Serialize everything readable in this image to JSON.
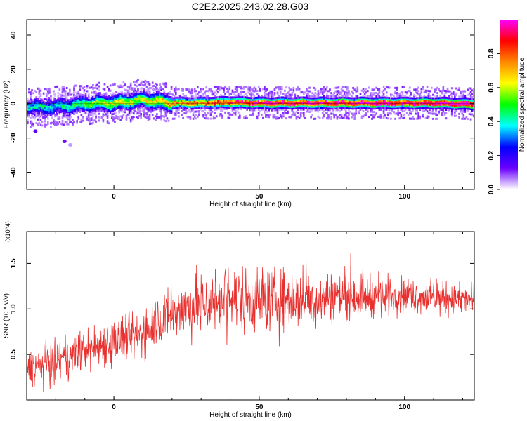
{
  "title": "C2E2.2025.243.02.28.G03",
  "chart_data": [
    {
      "type": "heatmap",
      "xlabel": "Height of straight line (km)",
      "ylabel": "Frequency (Hz)",
      "xlim": [
        -30,
        124
      ],
      "ylim": [
        -50,
        49
      ],
      "xticks": [
        "0",
        "50",
        "100"
      ],
      "xtick_values": [
        0,
        50,
        100
      ],
      "yticks": [
        "40",
        "20",
        "0",
        "-20",
        "-40"
      ],
      "ytick_values": [
        40,
        20,
        0,
        -20,
        -40
      ],
      "colorbar": {
        "label": "Normalized spectral amplitude",
        "ticks": [
          "0.0",
          "0.2",
          "0.4",
          "0.6",
          "0.8"
        ],
        "tick_values": [
          0.0,
          0.2,
          0.4,
          0.6,
          0.8
        ],
        "range": [
          0,
          1
        ],
        "colormap": [
          "#ffffff",
          "#6a00ff",
          "#0000ff",
          "#00ffff",
          "#00ff00",
          "#ffff00",
          "#ff8800",
          "#ff0000",
          "#ff00ff"
        ]
      },
      "ridge": {
        "x": [
          -30,
          -25,
          -20,
          -15,
          -10,
          -5,
          0,
          5,
          10,
          15,
          20,
          30,
          40,
          50,
          60,
          70,
          80,
          90,
          100,
          110,
          124
        ],
        "center_hz": [
          -1.5,
          -2,
          -1.5,
          -1,
          0,
          0.5,
          0.5,
          1.5,
          2.5,
          1.5,
          0.5,
          0.5,
          1,
          0.5,
          0.5,
          0.5,
          0.5,
          0.5,
          0.5,
          0.5,
          0
        ],
        "peak_amplitude": [
          0.35,
          0.4,
          0.35,
          0.4,
          0.5,
          0.55,
          0.6,
          0.55,
          0.6,
          0.65,
          0.7,
          0.75,
          0.85,
          0.9,
          0.9,
          0.9,
          0.9,
          0.9,
          0.9,
          0.95,
          1.0
        ]
      }
    },
    {
      "type": "line",
      "xlabel": "Height of straight line (km)",
      "ylabel": "SNR (10 * v/v)",
      "y_multiplier": "(x10^4)",
      "xlim": [
        -30,
        124
      ],
      "ylim": [
        0,
        1.85
      ],
      "xticks": [
        "0",
        "50",
        "100"
      ],
      "xtick_values": [
        0,
        50,
        100
      ],
      "yticks": [
        "0.5",
        "1.0",
        "1.5"
      ],
      "ytick_values": [
        0.5,
        1.0,
        1.5
      ],
      "series": [
        {
          "color": "#e8312f",
          "trend_x": [
            -30,
            -20,
            -10,
            0,
            10,
            15,
            20,
            30,
            40,
            50,
            60,
            70,
            80,
            90,
            100,
            110,
            124
          ],
          "trend_y": [
            0.35,
            0.42,
            0.55,
            0.65,
            0.72,
            0.9,
            0.95,
            1.05,
            1.12,
            1.12,
            1.1,
            1.12,
            1.15,
            1.15,
            1.15,
            1.12,
            1.1
          ],
          "spread": [
            0.3,
            0.35,
            0.35,
            0.4,
            0.4,
            0.45,
            0.45,
            0.55,
            0.6,
            0.55,
            0.5,
            0.45,
            0.4,
            0.35,
            0.3,
            0.28,
            0.25
          ]
        }
      ]
    }
  ]
}
